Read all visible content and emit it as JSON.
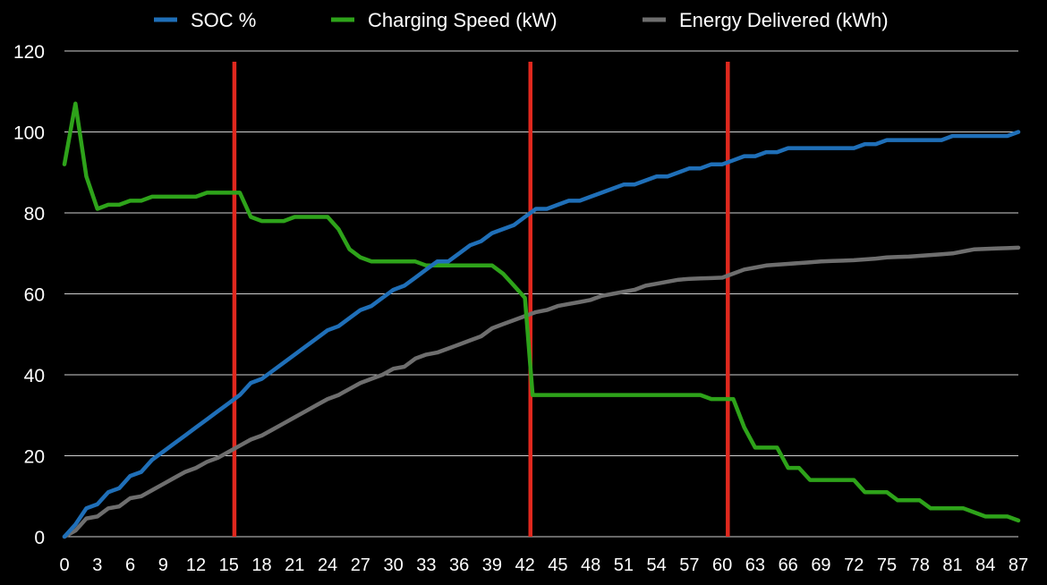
{
  "chart_data": {
    "type": "line",
    "title": "",
    "xlabel": "",
    "ylabel": "",
    "xlim": [
      0,
      87
    ],
    "ylim": [
      0,
      120
    ],
    "y_ticks": [
      "0",
      "20",
      "40",
      "60",
      "80",
      "100",
      "120"
    ],
    "x_ticks": [
      "0",
      "3",
      "6",
      "9",
      "12",
      "15",
      "18",
      "21",
      "24",
      "27",
      "30",
      "33",
      "36",
      "39",
      "42",
      "45",
      "48",
      "51",
      "54",
      "57",
      "60",
      "63",
      "66",
      "69",
      "72",
      "75",
      "78",
      "81",
      "84",
      "87"
    ],
    "grid": true,
    "legend_position": "top-center",
    "vertical_markers": [
      15.5,
      42.5,
      60.5
    ],
    "marker_color": "#e0281e",
    "series": [
      {
        "name": "SOC %",
        "color": "#1f6fb8",
        "points": [
          [
            0,
            0
          ],
          [
            1,
            3
          ],
          [
            2,
            7
          ],
          [
            3,
            8
          ],
          [
            4,
            11
          ],
          [
            5,
            12
          ],
          [
            6,
            15
          ],
          [
            7,
            16
          ],
          [
            8,
            19
          ],
          [
            9,
            21
          ],
          [
            10,
            23
          ],
          [
            11,
            25
          ],
          [
            12,
            27
          ],
          [
            13,
            29
          ],
          [
            14,
            31
          ],
          [
            15,
            33
          ],
          [
            16,
            35
          ],
          [
            17,
            38
          ],
          [
            18,
            39
          ],
          [
            19,
            41
          ],
          [
            20,
            43
          ],
          [
            21,
            45
          ],
          [
            22,
            47
          ],
          [
            23,
            49
          ],
          [
            24,
            51
          ],
          [
            25,
            52
          ],
          [
            26,
            54
          ],
          [
            27,
            56
          ],
          [
            28,
            57
          ],
          [
            29,
            59
          ],
          [
            30,
            61
          ],
          [
            31,
            62
          ],
          [
            32,
            64
          ],
          [
            33,
            66
          ],
          [
            34,
            68
          ],
          [
            35,
            68
          ],
          [
            36,
            70
          ],
          [
            37,
            72
          ],
          [
            38,
            73
          ],
          [
            39,
            75
          ],
          [
            40,
            76
          ],
          [
            41,
            77
          ],
          [
            42,
            79
          ],
          [
            43,
            81
          ],
          [
            44,
            81
          ],
          [
            45,
            82
          ],
          [
            46,
            83
          ],
          [
            47,
            83
          ],
          [
            48,
            84
          ],
          [
            49,
            85
          ],
          [
            50,
            86
          ],
          [
            51,
            87
          ],
          [
            52,
            87
          ],
          [
            53,
            88
          ],
          [
            54,
            89
          ],
          [
            55,
            89
          ],
          [
            56,
            90
          ],
          [
            57,
            91
          ],
          [
            58,
            91
          ],
          [
            59,
            92
          ],
          [
            60,
            92
          ],
          [
            61,
            93
          ],
          [
            62,
            94
          ],
          [
            63,
            94
          ],
          [
            64,
            95
          ],
          [
            65,
            95
          ],
          [
            66,
            96
          ],
          [
            67,
            96
          ],
          [
            68,
            96
          ],
          [
            69,
            96
          ],
          [
            70,
            96
          ],
          [
            71,
            96
          ],
          [
            72,
            96
          ],
          [
            73,
            97
          ],
          [
            74,
            97
          ],
          [
            75,
            98
          ],
          [
            76,
            98
          ],
          [
            77,
            98
          ],
          [
            78,
            98
          ],
          [
            79,
            98
          ],
          [
            80,
            98
          ],
          [
            81,
            99
          ],
          [
            82,
            99
          ],
          [
            83,
            99
          ],
          [
            84,
            99
          ],
          [
            85,
            99
          ],
          [
            86,
            99
          ],
          [
            87,
            100
          ]
        ]
      },
      {
        "name": "Charging Speed (kW)",
        "color": "#2ea31a",
        "points": [
          [
            0,
            92
          ],
          [
            1,
            107
          ],
          [
            2,
            89
          ],
          [
            3,
            81
          ],
          [
            4,
            82
          ],
          [
            5,
            82
          ],
          [
            6,
            83
          ],
          [
            7,
            83
          ],
          [
            8,
            84
          ],
          [
            9,
            84
          ],
          [
            10,
            84
          ],
          [
            11,
            84
          ],
          [
            12,
            84
          ],
          [
            13,
            85
          ],
          [
            14,
            85
          ],
          [
            15,
            85
          ],
          [
            16,
            85
          ],
          [
            17,
            79
          ],
          [
            18,
            78
          ],
          [
            19,
            78
          ],
          [
            20,
            78
          ],
          [
            21,
            79
          ],
          [
            22,
            79
          ],
          [
            23,
            79
          ],
          [
            24,
            79
          ],
          [
            25,
            76
          ],
          [
            26,
            71
          ],
          [
            27,
            69
          ],
          [
            28,
            68
          ],
          [
            29,
            68
          ],
          [
            30,
            68
          ],
          [
            31,
            68
          ],
          [
            32,
            68
          ],
          [
            33,
            67
          ],
          [
            34,
            67
          ],
          [
            35,
            67
          ],
          [
            36,
            67
          ],
          [
            37,
            67
          ],
          [
            38,
            67
          ],
          [
            39,
            67
          ],
          [
            40,
            65
          ],
          [
            41,
            62
          ],
          [
            42,
            59
          ],
          [
            42.7,
            35
          ],
          [
            43,
            35
          ],
          [
            44,
            35
          ],
          [
            45,
            35
          ],
          [
            46,
            35
          ],
          [
            47,
            35
          ],
          [
            48,
            35
          ],
          [
            49,
            35
          ],
          [
            50,
            35
          ],
          [
            51,
            35
          ],
          [
            52,
            35
          ],
          [
            53,
            35
          ],
          [
            54,
            35
          ],
          [
            55,
            35
          ],
          [
            56,
            35
          ],
          [
            57,
            35
          ],
          [
            58,
            35
          ],
          [
            59,
            34
          ],
          [
            60,
            34
          ],
          [
            61,
            34
          ],
          [
            62,
            27
          ],
          [
            63,
            22
          ],
          [
            64,
            22
          ],
          [
            65,
            22
          ],
          [
            66,
            17
          ],
          [
            67,
            17
          ],
          [
            68,
            14
          ],
          [
            69,
            14
          ],
          [
            70,
            14
          ],
          [
            71,
            14
          ],
          [
            72,
            14
          ],
          [
            73,
            11
          ],
          [
            74,
            11
          ],
          [
            75,
            11
          ],
          [
            76,
            9
          ],
          [
            77,
            9
          ],
          [
            78,
            9
          ],
          [
            79,
            7
          ],
          [
            80,
            7
          ],
          [
            81,
            7
          ],
          [
            82,
            7
          ],
          [
            83,
            6
          ],
          [
            84,
            5
          ],
          [
            85,
            5
          ],
          [
            86,
            5
          ],
          [
            87,
            4
          ]
        ]
      },
      {
        "name": "Energy Delivered (kWh)",
        "color": "#6e6e6e",
        "points": [
          [
            0,
            0
          ],
          [
            1,
            1.5
          ],
          [
            2,
            4.5
          ],
          [
            3,
            5
          ],
          [
            4,
            7
          ],
          [
            5,
            7.5
          ],
          [
            6,
            9.5
          ],
          [
            7,
            10
          ],
          [
            8,
            11.5
          ],
          [
            9,
            13
          ],
          [
            10,
            14.5
          ],
          [
            11,
            16
          ],
          [
            12,
            17
          ],
          [
            13,
            18.5
          ],
          [
            14,
            19.5
          ],
          [
            15,
            21
          ],
          [
            16,
            22.5
          ],
          [
            17,
            24
          ],
          [
            18,
            25
          ],
          [
            19,
            26.5
          ],
          [
            20,
            28
          ],
          [
            21,
            29.5
          ],
          [
            22,
            31
          ],
          [
            23,
            32.5
          ],
          [
            24,
            34
          ],
          [
            25,
            35
          ],
          [
            26,
            36.5
          ],
          [
            27,
            38
          ],
          [
            28,
            39
          ],
          [
            29,
            40
          ],
          [
            30,
            41.5
          ],
          [
            31,
            42
          ],
          [
            32,
            44
          ],
          [
            33,
            45
          ],
          [
            34,
            45.5
          ],
          [
            35,
            46.5
          ],
          [
            36,
            47.5
          ],
          [
            37,
            48.5
          ],
          [
            38,
            49.5
          ],
          [
            39,
            51.5
          ],
          [
            40,
            52.5
          ],
          [
            41,
            53.5
          ],
          [
            42,
            54.5
          ],
          [
            43,
            55.5
          ],
          [
            44,
            56
          ],
          [
            45,
            57
          ],
          [
            46,
            57.5
          ],
          [
            47,
            58
          ],
          [
            48,
            58.5
          ],
          [
            49,
            59.5
          ],
          [
            50,
            60
          ],
          [
            51,
            60.5
          ],
          [
            52,
            61
          ],
          [
            53,
            62
          ],
          [
            54,
            62.5
          ],
          [
            55,
            63
          ],
          [
            56,
            63.5
          ],
          [
            57,
            63.7
          ],
          [
            58,
            63.8
          ],
          [
            59,
            63.9
          ],
          [
            60,
            64
          ],
          [
            61,
            65
          ],
          [
            62,
            66
          ],
          [
            63,
            66.5
          ],
          [
            64,
            67
          ],
          [
            65,
            67.2
          ],
          [
            66,
            67.4
          ],
          [
            67,
            67.6
          ],
          [
            68,
            67.8
          ],
          [
            69,
            68
          ],
          [
            70,
            68.1
          ],
          [
            71,
            68.2
          ],
          [
            72,
            68.3
          ],
          [
            73,
            68.5
          ],
          [
            74,
            68.7
          ],
          [
            75,
            69
          ],
          [
            76,
            69.1
          ],
          [
            77,
            69.2
          ],
          [
            78,
            69.4
          ],
          [
            79,
            69.6
          ],
          [
            80,
            69.8
          ],
          [
            81,
            70
          ],
          [
            82,
            70.5
          ],
          [
            83,
            71
          ],
          [
            84,
            71.1
          ],
          [
            85,
            71.2
          ],
          [
            86,
            71.3
          ],
          [
            87,
            71.4
          ]
        ]
      }
    ]
  }
}
